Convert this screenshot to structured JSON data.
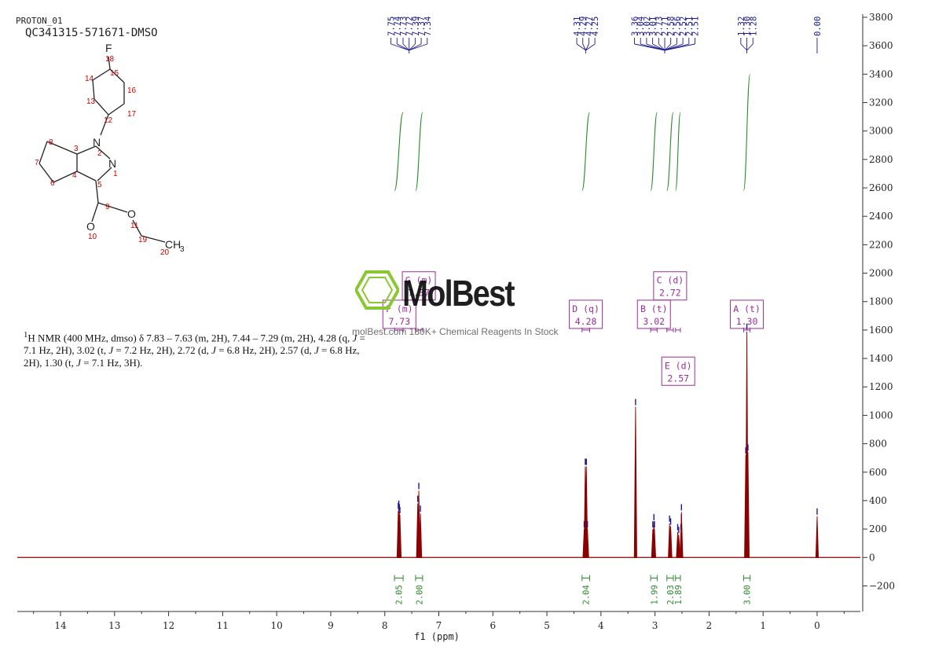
{
  "header": {
    "line1": "PROTON_01",
    "line2": "QC341315-571671-DMSO"
  },
  "nmr_text": {
    "sup": "1",
    "p1": "H NMR (400 MHz, dmso) δ 7.83 – 7.63 (m, 2H), 7.44 – 7.29 (m, 2H), 4.28 (q, ",
    "j": "J",
    "p2": " = 7.1 Hz, 2H), 3.02 (t, ",
    "p3": " = 7.2 Hz, 2H), 2.72 (d, ",
    "p4": " = 6.8 Hz, 2H), 2.57 (d, ",
    "p5": " = 6.8 Hz, 2H), 1.30 (t, ",
    "p6": " = 7.1 Hz, 3H)."
  },
  "watermark": {
    "logo": "MolBest",
    "text": "molBest.com 180K+ Chemical Reagents In Stock"
  },
  "molecule": {
    "atoms": [
      "F",
      "18",
      "15",
      "14",
      "16",
      "13",
      "17",
      "12",
      "N",
      "2",
      "8",
      "3",
      "7",
      "N",
      "1",
      "4",
      "6",
      "5",
      "9",
      "O",
      "11",
      "O",
      "10",
      "19",
      "CH",
      "3",
      "20"
    ]
  },
  "colors": {
    "spectrum": "#8b0000",
    "peak_labels": "#1a1a8c",
    "integrals": "#2a8a2a",
    "multiplet_boxes": "#9b2d9b",
    "axis": "#333333",
    "atom_numbers": "#cc0000"
  },
  "chart_data": {
    "type": "line",
    "xlabel": "f1 (ppm)",
    "ylabel": "",
    "xlim": [
      14.8,
      -0.8
    ],
    "ylim": [
      -380,
      3800
    ],
    "x_ticks": [
      14,
      13,
      12,
      11,
      10,
      9,
      8,
      7,
      6,
      5,
      4,
      3,
      2,
      1,
      0
    ],
    "y_ticks": [
      -200,
      0,
      200,
      400,
      600,
      800,
      1000,
      1200,
      1400,
      1600,
      1800,
      2000,
      2200,
      2400,
      2600,
      2800,
      3000,
      3200,
      3400,
      3600,
      3800
    ],
    "peaks": [
      {
        "ppm": 7.75,
        "h": 330
      },
      {
        "ppm": 7.74,
        "h": 345
      },
      {
        "ppm": 7.73,
        "h": 320
      },
      {
        "ppm": 7.72,
        "h": 300
      },
      {
        "ppm": 7.39,
        "h": 380
      },
      {
        "ppm": 7.37,
        "h": 470
      },
      {
        "ppm": 7.34,
        "h": 310
      },
      {
        "ppm": 4.31,
        "h": 200
      },
      {
        "ppm": 4.29,
        "h": 640
      },
      {
        "ppm": 4.27,
        "h": 640
      },
      {
        "ppm": 4.25,
        "h": 200
      },
      {
        "ppm": 3.36,
        "h": 1060
      },
      {
        "ppm": 3.04,
        "h": 200
      },
      {
        "ppm": 3.02,
        "h": 250
      },
      {
        "ppm": 3.01,
        "h": 200
      },
      {
        "ppm": 2.73,
        "h": 240
      },
      {
        "ppm": 2.71,
        "h": 220
      },
      {
        "ppm": 2.58,
        "h": 180
      },
      {
        "ppm": 2.56,
        "h": 160
      },
      {
        "ppm": 2.52,
        "h": 180
      },
      {
        "ppm": 2.51,
        "h": 250
      },
      {
        "ppm": 2.51,
        "h": 320
      },
      {
        "ppm": 1.32,
        "h": 720
      },
      {
        "ppm": 1.3,
        "h": 1590
      },
      {
        "ppm": 1.28,
        "h": 740
      },
      {
        "ppm": 0.0,
        "h": 290
      }
    ],
    "peak_labels": {
      "group1": {
        "labels": [
          "7.75",
          "7.74",
          "7.73",
          "7.72",
          "7.39",
          "7.37",
          "7.34"
        ],
        "center_ppm": 7.55
      },
      "group2": {
        "labels": [
          "4.31",
          "4.29",
          "4.27",
          "4.25"
        ],
        "center_ppm": 4.28
      },
      "group3": {
        "labels": [
          "3.36",
          "3.04",
          "3.02",
          "3.01",
          "2.73",
          "2.71",
          "2.58",
          "2.56",
          "2.52",
          "2.51",
          "2.51"
        ],
        "center_ppm": 2.82
      },
      "group4": {
        "labels": [
          "1.32",
          "1.30",
          "1.28"
        ],
        "center_ppm": 1.3
      },
      "group5": {
        "labels": [
          "0.00"
        ],
        "center_ppm": 0.0
      }
    },
    "integrals": [
      {
        "from": 7.82,
        "to": 7.66,
        "value": "2.05",
        "rise": [
          2580,
          3130
        ]
      },
      {
        "from": 7.43,
        "to": 7.3,
        "value": "2.00",
        "rise": [
          2580,
          3130
        ]
      },
      {
        "from": 4.35,
        "to": 4.21,
        "value": "2.04",
        "rise": [
          2580,
          3130
        ]
      },
      {
        "from": 3.08,
        "to": 2.96,
        "value": "1.99",
        "rise": [
          2580,
          3130
        ]
      },
      {
        "from": 2.78,
        "to": 2.66,
        "value": "2.03",
        "rise": [
          2580,
          3130
        ]
      },
      {
        "from": 2.62,
        "to": 2.53,
        "value": "1.89",
        "rise": [
          2580,
          3130
        ]
      },
      {
        "from": 1.36,
        "to": 1.24,
        "value": "3.00",
        "rise": [
          2580,
          3400
        ]
      }
    ],
    "multiplets": [
      {
        "name": "F (m)",
        "value": "7.73",
        "ppm": 7.73,
        "bracket": [
          7.82,
          7.66
        ],
        "bracket_y": 1600,
        "box_y": 1810
      },
      {
        "name": "G (m)",
        "value": "7.37",
        "ppm": 7.37,
        "bracket": [
          7.43,
          7.3
        ],
        "bracket_y": 1600,
        "box_y": 2010
      },
      {
        "name": "D (q)",
        "value": "4.28",
        "ppm": 4.28,
        "bracket": [
          4.35,
          4.21
        ],
        "bracket_y": 1600,
        "box_y": 1810
      },
      {
        "name": "B (t)",
        "value": "3.02",
        "ppm": 3.02,
        "bracket": [
          3.08,
          2.96
        ],
        "bracket_y": 1600,
        "box_y": 1810
      },
      {
        "name": "C (d)",
        "value": "2.72",
        "ppm": 2.72,
        "bracket": [
          2.78,
          2.66
        ],
        "bracket_y": 1600,
        "box_y": 2010
      },
      {
        "name": "E (d)",
        "value": "2.57",
        "ppm": 2.57,
        "bracket": [
          2.62,
          2.53
        ],
        "bracket_y": 1600,
        "box_y": 1410
      },
      {
        "name": "A (t)",
        "value": "1.30",
        "ppm": 1.3,
        "bracket": [
          1.36,
          1.24
        ],
        "bracket_y": 1600,
        "box_y": 1810
      }
    ]
  }
}
